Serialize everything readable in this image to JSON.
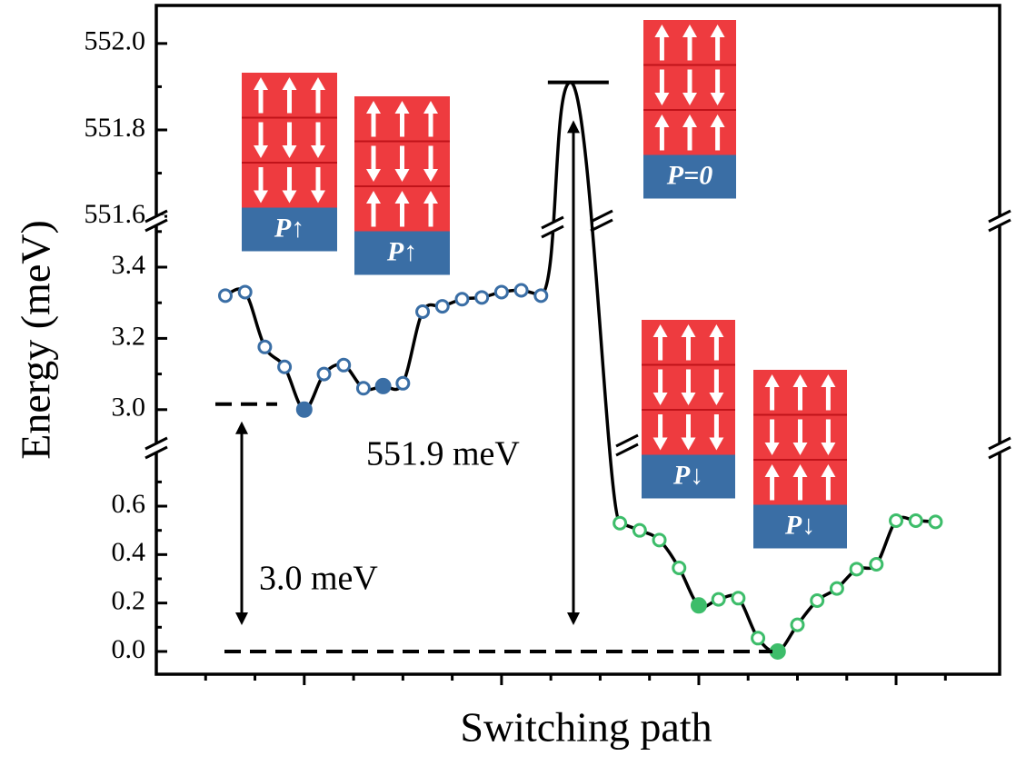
{
  "chart_data": {
    "type": "line",
    "ylabel": "Energy (meV)",
    "xlabel": "Switching path",
    "xlim": [
      0,
      17.1
    ],
    "xticks": [
      3,
      7,
      11,
      15
    ],
    "xminorticks": [
      1,
      2,
      4,
      5,
      6,
      8,
      9,
      10,
      12,
      13,
      14,
      16
    ],
    "y_axes": [
      {
        "ylim": [
          -0.094,
          0.829
        ],
        "yticks": [
          {
            "value": 0,
            "label": "0.0"
          },
          0.2,
          0.4,
          0.6
        ],
        "yminorticks": [
          0.1,
          0.3,
          0.5,
          0.7
        ]
      },
      {
        "ylim": [
          2.9,
          3.525
        ],
        "yticks": [
          {
            "value": 3,
            "label": "3.0"
          },
          3.2,
          3.4
        ],
        "yminorticks": [
          3.1,
          3.3,
          3.5
        ]
      },
      {
        "ylim": [
          551.596,
          552.088
        ],
        "yticks": [
          551.6,
          551.8,
          {
            "value": 552,
            "label": "552.0"
          }
        ],
        "yminorticks": [
          551.7,
          551.9
        ]
      }
    ],
    "series": [
      {
        "color": "#3a6ea5",
        "axis": 1,
        "x": [
          1.4,
          1.8,
          2.2,
          2.6,
          3.0,
          3.4,
          3.8,
          4.2,
          4.6,
          5.0,
          5.4,
          5.8,
          6.2,
          6.6,
          7.0,
          7.4,
          7.8
        ],
        "values": [
          3.32,
          3.33,
          3.176,
          3.12,
          3.0,
          3.1,
          3.125,
          3.06,
          3.066,
          3.074,
          3.275,
          3.29,
          3.31,
          3.315,
          3.33,
          3.335,
          3.32
        ],
        "filled": [
          false,
          false,
          false,
          false,
          true,
          false,
          false,
          false,
          true,
          false,
          false,
          false,
          false,
          false,
          false,
          false,
          false
        ]
      },
      {
        "color": "#3dbd6a",
        "axis": 0,
        "x": [
          9.4,
          9.8,
          10.2,
          10.6,
          11.0,
          11.4,
          11.8,
          12.2,
          12.6,
          13.0,
          13.4,
          13.8,
          14.2,
          14.6,
          15.0,
          15.4,
          15.8
        ],
        "values": [
          0.53,
          0.5,
          0.46,
          0.345,
          0.19,
          0.215,
          0.22,
          0.055,
          0.0,
          0.11,
          0.21,
          0.26,
          0.34,
          0.36,
          0.54,
          0.54,
          0.535
        ],
        "filled": [
          false,
          false,
          false,
          false,
          true,
          false,
          false,
          false,
          true,
          false,
          false,
          false,
          false,
          false,
          false,
          false,
          false
        ]
      }
    ],
    "barrier": {
      "x": 8.4,
      "value": 551.91,
      "axis": 2
    },
    "annotations": [
      {
        "text": "3.0 meV",
        "value": 3.0,
        "from": 0
      },
      {
        "text": "551.9 meV",
        "value": 551.9,
        "from": 0
      }
    ],
    "insets": [
      {
        "label": "P↑"
      },
      {
        "label": "P↑"
      },
      {
        "label": "P=0"
      },
      {
        "label": "P↓"
      },
      {
        "label": "P↓"
      }
    ]
  }
}
